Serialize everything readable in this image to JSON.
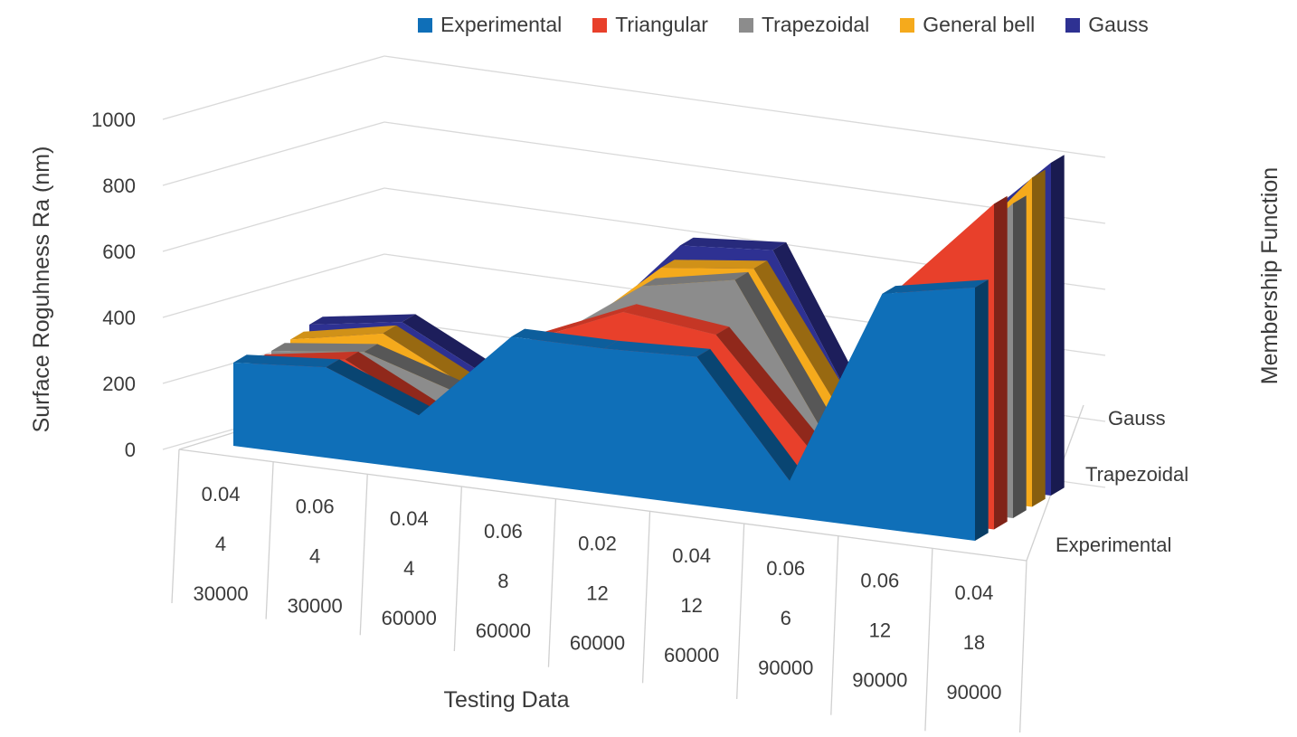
{
  "chart_data": {
    "type": "area",
    "variant": "3d-area",
    "legend_position": "top",
    "xlabel": "Testing Data",
    "ylabel": "Surface Roguhness Ra (nm)",
    "zlabel": "Membership Function",
    "ylim": [
      0,
      1000
    ],
    "yticks": [
      "0",
      "200",
      "400",
      "600",
      "800",
      "1000"
    ],
    "z_ticks": [
      "Experimental",
      "Trapezoidal",
      "Gauss"
    ],
    "grid": true,
    "categories": [
      [
        "0.04",
        "4",
        "30000"
      ],
      [
        "0.06",
        "4",
        "30000"
      ],
      [
        "0.04",
        "4",
        "60000"
      ],
      [
        "0.06",
        "8",
        "60000"
      ],
      [
        "0.02",
        "12",
        "60000"
      ],
      [
        "0.04",
        "12",
        "60000"
      ],
      [
        "0.06",
        "6",
        "90000"
      ],
      [
        "0.06",
        "12",
        "90000"
      ],
      [
        "0.04",
        "18",
        "90000"
      ]
    ],
    "series": [
      {
        "name": "Experimental",
        "color": "#0f6fb8",
        "values": [
          230,
          250,
          150,
          400,
          400,
          410,
          100,
          650,
          700
        ]
      },
      {
        "name": "Triangular",
        "color": "#e8402b",
        "values": [
          200,
          240,
          110,
          360,
          470,
          440,
          160,
          640,
          900
        ]
      },
      {
        "name": "Trapezoidal",
        "color": "#8c8c8c",
        "values": [
          200,
          230,
          150,
          330,
          510,
          560,
          150,
          610,
          870
        ]
      },
      {
        "name": "General bell",
        "color": "#f5aa1c",
        "values": [
          200,
          250,
          120,
          310,
          530,
          560,
          170,
          620,
          910
        ]
      },
      {
        "name": "Gauss",
        "color": "#2e3192",
        "values": [
          210,
          250,
          120,
          290,
          560,
          580,
          120,
          680,
          920
        ]
      }
    ]
  }
}
